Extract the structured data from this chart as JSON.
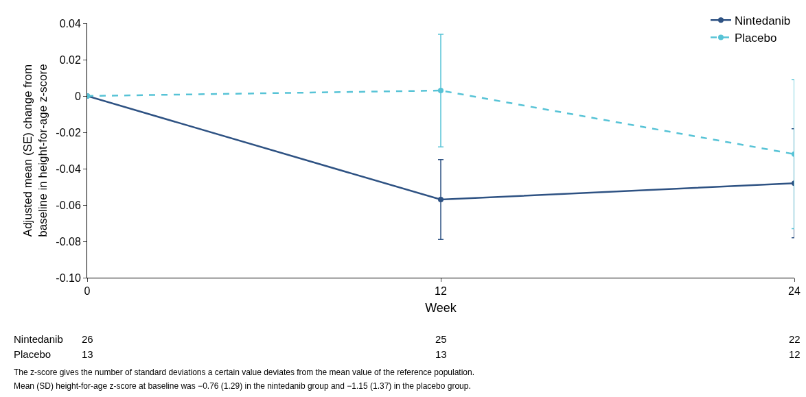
{
  "chart_data": {
    "type": "line",
    "x": [
      0,
      12,
      24
    ],
    "xlim": [
      0,
      24
    ],
    "xticks": [
      0,
      12,
      24
    ],
    "ylim": [
      -0.1,
      0.04
    ],
    "yticks": [
      {
        "value": 0.04,
        "label": "0.04"
      },
      {
        "value": 0.02,
        "label": "0.02"
      },
      {
        "value": 0,
        "label": "0"
      },
      {
        "value": -0.02,
        "label": "-0.02"
      },
      {
        "value": -0.04,
        "label": "-0.04"
      },
      {
        "value": -0.06,
        "label": "-0.06"
      },
      {
        "value": -0.08,
        "label": "-0.08"
      },
      {
        "value": -0.1,
        "label": "-0.10"
      }
    ],
    "xlabel": "Week",
    "ylabel": "Adjusted mean (SE) change from\nbaseline in height-for-age z-score",
    "series": [
      {
        "name": "Nintedanib",
        "color": "#2e5283",
        "values": [
          0,
          -0.057,
          -0.048
        ],
        "errors": [
          null,
          0.022,
          0.03
        ],
        "line_style": "solid"
      },
      {
        "name": "Placebo",
        "color": "#57c3d6",
        "values": [
          0,
          0.003,
          -0.032
        ],
        "errors": [
          null,
          0.031,
          0.041
        ],
        "line_style": "dashed"
      }
    ],
    "marker": "circle",
    "grid": false,
    "legend": "top right",
    "annotations": [
      "Nintedanib",
      "26",
      "25",
      "22",
      "Placebo",
      "13",
      "13",
      "12",
      "The z-score gives the number of standard deviations a certain value deviates from the mean value of the reference population.",
      "Mean (SD) height-for-age z-score at baseline was −0.76 (1.29) in the nintedanib group and −1.15 (1.37) in the placebo group."
    ]
  }
}
